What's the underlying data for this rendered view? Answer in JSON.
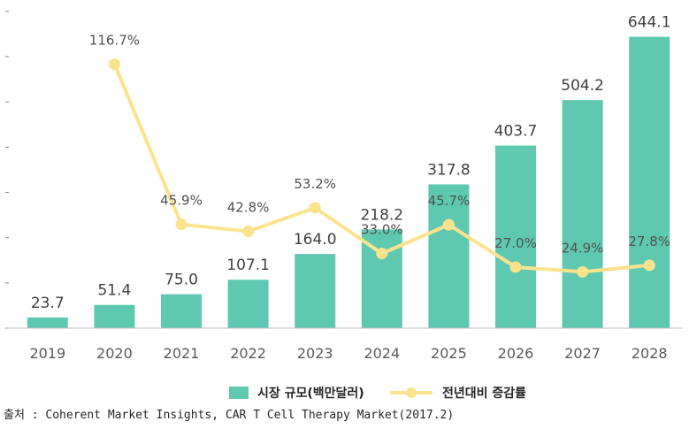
{
  "chart_data": {
    "type": "bar",
    "categories": [
      "2019",
      "2020",
      "2021",
      "2022",
      "2023",
      "2024",
      "2025",
      "2026",
      "2027",
      "2028"
    ],
    "series": [
      {
        "name": "시장 규모(백만달러)",
        "type": "bar",
        "color": "#5ec9b0",
        "values": [
          23.7,
          51.4,
          75.0,
          107.1,
          164.0,
          218.2,
          317.8,
          403.7,
          504.2,
          644.1
        ],
        "labels": [
          "23.7",
          "51.4",
          "75.0",
          "107.1",
          "164.0",
          "218.2",
          "317.8",
          "403.7",
          "504.2",
          "644.1"
        ]
      },
      {
        "name": "전년대비 증감률",
        "type": "line",
        "color": "#fbe38e",
        "values": [
          null,
          116.7,
          45.9,
          42.8,
          53.2,
          33.0,
          45.7,
          27.0,
          24.9,
          27.8
        ],
        "labels": [
          "",
          "116.7%",
          "45.9%",
          "42.8%",
          "53.2%",
          "33.0%",
          "45.7%",
          "27.0%",
          "24.9%",
          "27.8%"
        ]
      }
    ],
    "ylim": [
      0,
      700
    ],
    "y2lim": [
      0,
      140
    ],
    "legend_position": "bottom",
    "grid": false
  },
  "source": "출처 : Coherent Market Insights, CAR T Cell Therapy Market(2017.2)"
}
